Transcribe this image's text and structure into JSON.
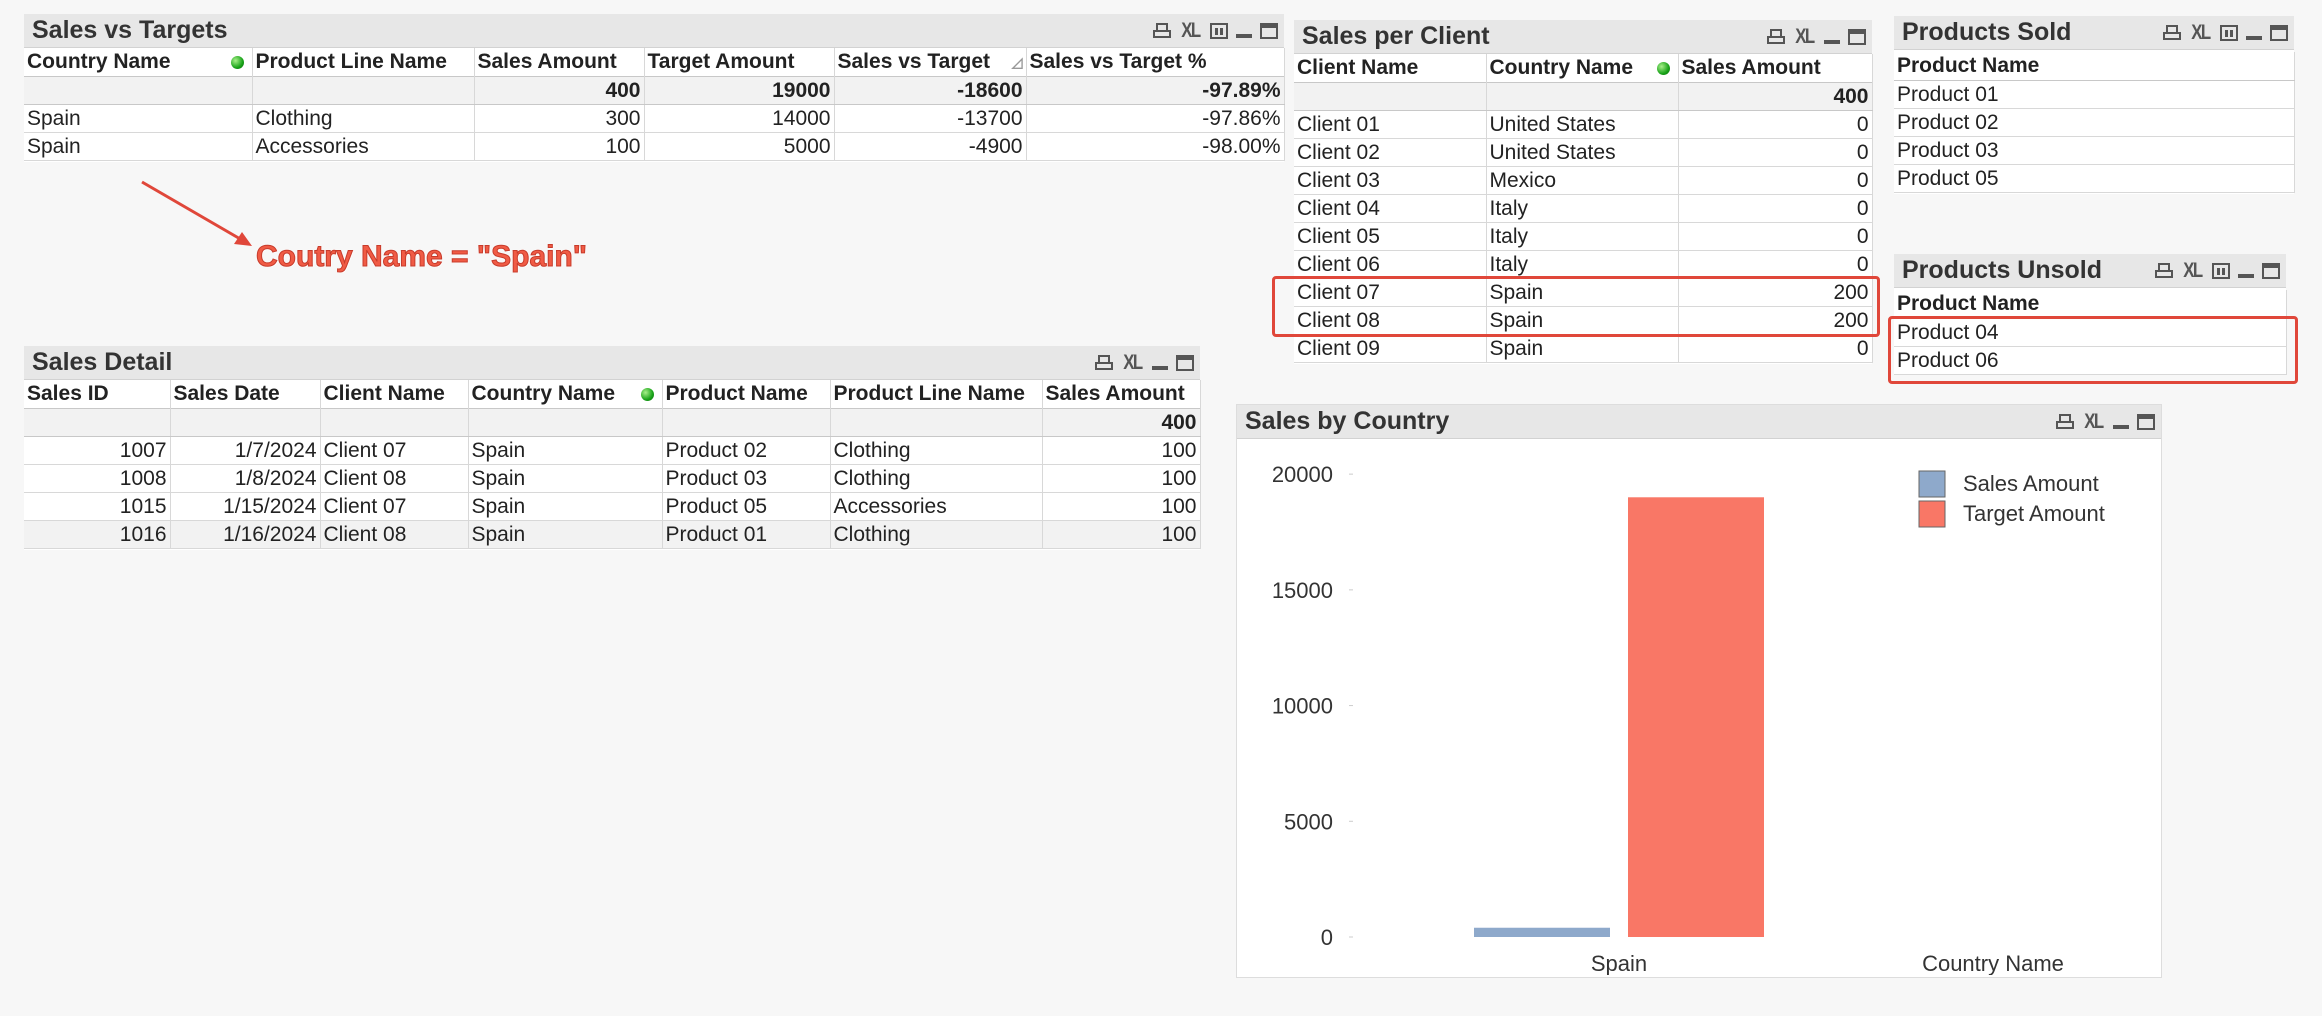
{
  "sales_vs_targets": {
    "title": "Sales vs Targets",
    "headers": [
      "Country Name",
      "Product Line Name",
      "Sales Amount",
      "Target Amount",
      "Sales vs Target",
      "Sales vs Target %"
    ],
    "totals": [
      "",
      "",
      "400",
      "19000",
      "-18600",
      "-97.89%"
    ],
    "rows": [
      [
        "Spain",
        "Clothing",
        "300",
        "14000",
        "-13700",
        "-97.86%"
      ],
      [
        "Spain",
        "Accessories",
        "100",
        "5000",
        "-4900",
        "-98.00%"
      ]
    ]
  },
  "annotation": {
    "text": "Coutry Name = \"Spain\"",
    "color": "#f05b45"
  },
  "sales_detail": {
    "title": "Sales Detail",
    "headers": [
      "Sales ID",
      "Sales Date",
      "Client Name",
      "Country Name",
      "Product Name",
      "Product Line Name",
      "Sales Amount"
    ],
    "totals": [
      "",
      "",
      "",
      "",
      "",
      "",
      "400"
    ],
    "rows": [
      [
        "1007",
        "1/7/2024",
        "Client 07",
        "Spain",
        "Product 02",
        "Clothing",
        "100"
      ],
      [
        "1008",
        "1/8/2024",
        "Client 08",
        "Spain",
        "Product 03",
        "Clothing",
        "100"
      ],
      [
        "1015",
        "1/15/2024",
        "Client 07",
        "Spain",
        "Product 05",
        "Accessories",
        "100"
      ],
      [
        "1016",
        "1/16/2024",
        "Client 08",
        "Spain",
        "Product 01",
        "Clothing",
        "100"
      ]
    ]
  },
  "sales_per_client": {
    "title": "Sales per Client",
    "headers": [
      "Client Name",
      "Country Name",
      "Sales Amount"
    ],
    "totals": [
      "",
      "",
      "400"
    ],
    "rows": [
      [
        "Client 01",
        "United States",
        "0"
      ],
      [
        "Client 02",
        "United States",
        "0"
      ],
      [
        "Client 03",
        "Mexico",
        "0"
      ],
      [
        "Client 04",
        "Italy",
        "0"
      ],
      [
        "Client 05",
        "Italy",
        "0"
      ],
      [
        "Client 06",
        "Italy",
        "0"
      ],
      [
        "Client 07",
        "Spain",
        "200"
      ],
      [
        "Client 08",
        "Spain",
        "200"
      ],
      [
        "Client 09",
        "Spain",
        "0"
      ]
    ]
  },
  "products_sold": {
    "title": "Products Sold",
    "header": "Product Name",
    "rows": [
      "Product 01",
      "Product 02",
      "Product 03",
      "Product 05"
    ]
  },
  "products_unsold": {
    "title": "Products Unsold",
    "header": "Product Name",
    "rows": [
      "Product 04",
      "Product 06"
    ]
  },
  "icons": {
    "print": "print-icon",
    "excel": "XL",
    "chart": "chart-icon",
    "minimize": "minimize-icon",
    "maximize": "maximize-icon"
  },
  "chart_data": {
    "title": "Sales by Country",
    "type": "bar",
    "categories": [
      "Spain"
    ],
    "series": [
      {
        "name": "Sales Amount",
        "values": [
          400
        ],
        "color": "#8ea9cb"
      },
      {
        "name": "Target Amount",
        "values": [
          19000
        ],
        "color": "#f97766"
      }
    ],
    "xlabel": "Country Name",
    "ylabel": "",
    "ylim": [
      0,
      21000
    ],
    "yticks": [
      "20000",
      "15000",
      "10000",
      "5000",
      "0"
    ],
    "legend": "top-right",
    "grid": false
  }
}
